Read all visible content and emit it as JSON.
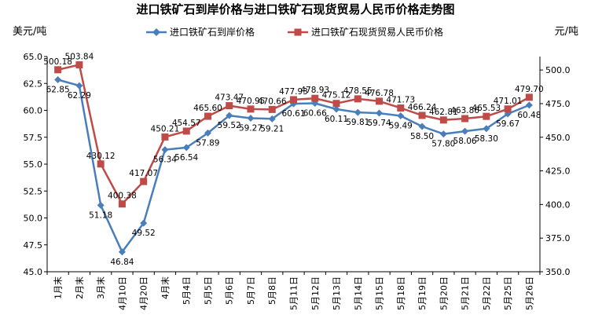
{
  "chart_data": {
    "type": "line",
    "title": "进口铁矿石到岸价格与进口铁矿石现货贸易人民币价格走势图",
    "ylabel_left": "美元/吨",
    "ylabel_right": "元/吨",
    "ylim_left": [
      45.0,
      65.0
    ],
    "ylim_right": [
      350.0,
      510.0
    ],
    "yticks_left": [
      "45.0",
      "47.5",
      "50.0",
      "52.5",
      "55.0",
      "57.5",
      "60.0",
      "62.5",
      "65.0"
    ],
    "yticks_right": [
      "350.0",
      "375.0",
      "400.0",
      "425.0",
      "450.0",
      "475.0",
      "500.0"
    ],
    "grid": false,
    "legend_position": "top",
    "categories": [
      "1月末",
      "2月末",
      "3月末",
      "4月10日",
      "4月20日",
      "4月末",
      "5月4日",
      "5月5日",
      "5月6日",
      "5月7日",
      "5月8日",
      "5月11日",
      "5月12日",
      "5月13日",
      "5月14日",
      "5月15日",
      "5月18日",
      "5月19日",
      "5月20日",
      "5月21日",
      "5月22日",
      "5月25日",
      "5月26日"
    ],
    "series": [
      {
        "name": "进口铁矿石到岸价格",
        "axis": "left",
        "color": "#4a7ebb",
        "marker": "diamond",
        "values": [
          62.85,
          62.29,
          51.18,
          46.84,
          49.52,
          56.34,
          56.54,
          57.89,
          59.52,
          59.27,
          59.21,
          60.61,
          60.66,
          60.11,
          59.81,
          59.74,
          59.49,
          58.5,
          57.8,
          58.06,
          58.3,
          59.67,
          60.48
        ],
        "labels": [
          "62.85",
          "62.29",
          "51.18",
          "46.84",
          "49.52",
          "56.34",
          "56.54",
          "57.89",
          "59.52",
          "59.27",
          "59.21",
          "60.61",
          "60.66",
          "60.11",
          "59.81",
          "59.74",
          "59.49",
          "58.50",
          "57.80",
          "58.06",
          "58.30",
          "59.67",
          "60.48"
        ]
      },
      {
        "name": "进口铁矿石现货贸易人民币价格",
        "axis": "right",
        "color": "#be4b48",
        "marker": "square",
        "values": [
          500.18,
          503.84,
          430.12,
          400.38,
          417.07,
          450.21,
          454.57,
          465.6,
          473.47,
          470.95,
          470.66,
          477.93,
          478.93,
          475.12,
          478.55,
          476.78,
          471.73,
          466.24,
          462.81,
          463.86,
          465.53,
          471.01,
          479.7
        ],
        "labels": [
          "500.18",
          "503.84",
          "430.12",
          "400.38",
          "417.07",
          "450.21",
          "454.57",
          "465.60",
          "473.47",
          "470.95",
          "470.66",
          "477.93",
          "478.93",
          "475.12",
          "478.55",
          "476.78",
          "471.73",
          "466.24",
          "462.81",
          "463.86",
          "465.53",
          "471.01",
          "479.70"
        ]
      }
    ]
  }
}
